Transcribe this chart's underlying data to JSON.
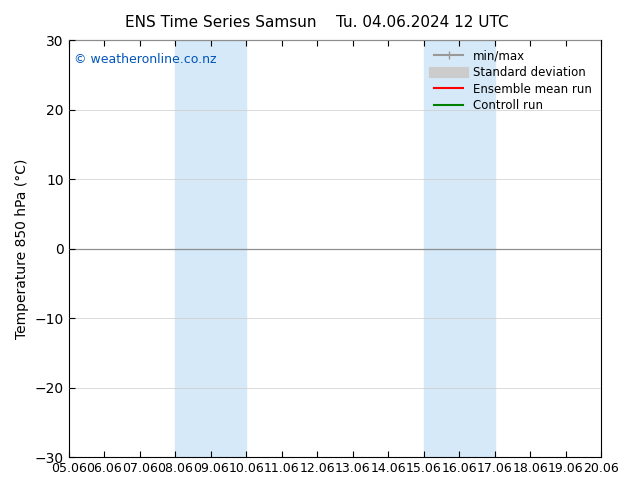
{
  "title_left": "ENS Time Series Samsun",
  "title_right": "Tu. 04.06.2024 12 UTC",
  "ylabel": "Temperature 850 hPa (°C)",
  "ylim": [
    -30,
    30
  ],
  "yticks": [
    -30,
    -20,
    -10,
    0,
    10,
    20,
    30
  ],
  "xlim": [
    0,
    15
  ],
  "xtick_labels": [
    "05.06",
    "06.06",
    "07.06",
    "08.06",
    "09.06",
    "10.06",
    "11.06",
    "12.06",
    "13.06",
    "14.06",
    "15.06",
    "16.06",
    "17.06",
    "18.06",
    "19.06",
    "20.06"
  ],
  "shaded_bands": [
    {
      "xmin": 3,
      "xmax": 5,
      "color": "#d6e9f8"
    },
    {
      "xmin": 10,
      "xmax": 12,
      "color": "#d6e9f8"
    }
  ],
  "copyright_text": "© weatheronline.co.nz",
  "copyright_color": "#0055bb",
  "background_color": "#ffffff",
  "plot_bg_color": "#ffffff",
  "legend_items": [
    {
      "label": "min/max",
      "color": "#999999",
      "lw": 1.5,
      "ls": "-"
    },
    {
      "label": "Standard deviation",
      "color": "#cccccc",
      "lw": 8,
      "ls": "-"
    },
    {
      "label": "Ensemble mean run",
      "color": "#ff0000",
      "lw": 1.5,
      "ls": "-"
    },
    {
      "label": "Controll run",
      "color": "#008000",
      "lw": 1.5,
      "ls": "-"
    }
  ],
  "hline_y": 0,
  "hline_color": "#000000",
  "hline_lw": 0.8,
  "grid_color": "#cccccc",
  "spine_color": "#000000",
  "tick_color": "#000000",
  "font_size": 10,
  "title_font_size": 11
}
